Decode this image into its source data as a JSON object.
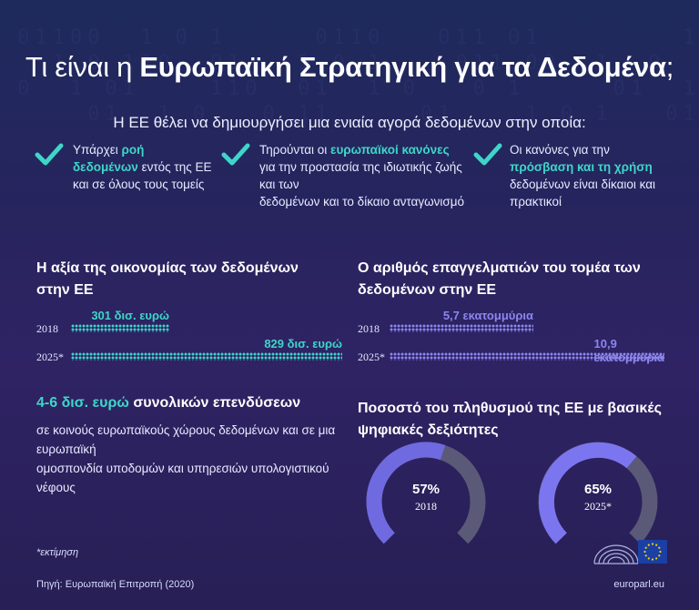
{
  "title": {
    "prefix": "Τι είναι η ",
    "bold": "Ευρωπαϊκή Στρατηγική για τα Δεδομένα",
    "suffix": ";"
  },
  "subtitle": "Η ΕΕ θέλει να δημιουργήσει μια ενιαία αγορά δεδομένων στην οποία:",
  "checks": [
    {
      "lines": [
        [
          {
            "t": "Υπάρχει ",
            "h": false
          },
          {
            "t": "ροή",
            "h": true
          }
        ],
        [
          {
            "t": "δεδομένων",
            "h": true
          },
          {
            "t": " εντός της ΕΕ",
            "h": false
          }
        ],
        [
          {
            "t": "και σε όλους τους τομείς",
            "h": false
          }
        ]
      ]
    },
    {
      "lines": [
        [
          {
            "t": "Τηρούνται οι ",
            "h": false
          },
          {
            "t": "ευρωπαϊκοί κανόνες",
            "h": true
          }
        ],
        [
          {
            "t": "για την προστασία της ιδιωτικής ζωής",
            "h": false
          }
        ],
        [
          {
            "t": "και των",
            "h": false
          }
        ],
        [
          {
            "t": "δεδομένων και το δίκαιο ανταγωνισμό",
            "h": false
          }
        ]
      ]
    },
    {
      "lines": [
        [
          {
            "t": "Οι κανόνες για την",
            "h": false
          }
        ],
        [
          {
            "t": "πρόσβαση και τη χρήση",
            "h": true
          }
        ],
        [
          {
            "t": "δεδομένων είναι δίκαιοι και",
            "h": false
          }
        ],
        [
          {
            "t": "πρακτικοί",
            "h": false
          }
        ]
      ]
    }
  ],
  "colors": {
    "teal": "#3ed6c8",
    "lavender": "#8c86ee",
    "gauge_fill_1": "#6f6ae0",
    "gauge_fill_2": "#7b76f0",
    "gauge_track": "#5a5a78"
  },
  "economy": {
    "title_line1": "Η αξία της οικονομίας των δεδομένων",
    "title_line2": "στην ΕΕ",
    "rows": [
      {
        "year": "2018",
        "value": 301,
        "label": "301 δισ. ευρώ"
      },
      {
        "year": "2025*",
        "value": 829,
        "label": "829 δισ. ευρώ"
      }
    ]
  },
  "professionals": {
    "title_line1": "Ο αριθμός επαγγελματιών του τομέα των",
    "title_line2": "δεδομένων στην ΕΕ",
    "rows": [
      {
        "year": "2018",
        "value": 5.7,
        "label": "5,7 εκατομμύρια"
      },
      {
        "year": "2025*",
        "value": 10.9,
        "label": "10,9 εκατομμύρια"
      }
    ]
  },
  "investment": {
    "highlight": "4-6 δισ. ευρώ",
    "rest": " συνολικών επενδύσεων",
    "lines": [
      "σε κοινούς ευρωπαϊκούς χώρους δεδομένων και σε μια",
      "ευρωπαϊκή",
      "ομοσπονδία υποδομών και υπηρεσιών υπολογιστικού",
      "νέφους"
    ]
  },
  "skills": {
    "title_line1": "Ποσοστό του πληθυσμού της ΕΕ με βασικές",
    "title_line2": "ψηφιακές δεξιότητες",
    "gauges": [
      {
        "percent": 57,
        "label": "57%",
        "year": "2018"
      },
      {
        "percent": 65,
        "label": "65%",
        "year": "2025*"
      }
    ]
  },
  "footnote": "*εκτίμηση",
  "source": "Πηγή: Ευρωπαϊκή Επιτροπή (2020)",
  "site": "europarl.eu"
}
